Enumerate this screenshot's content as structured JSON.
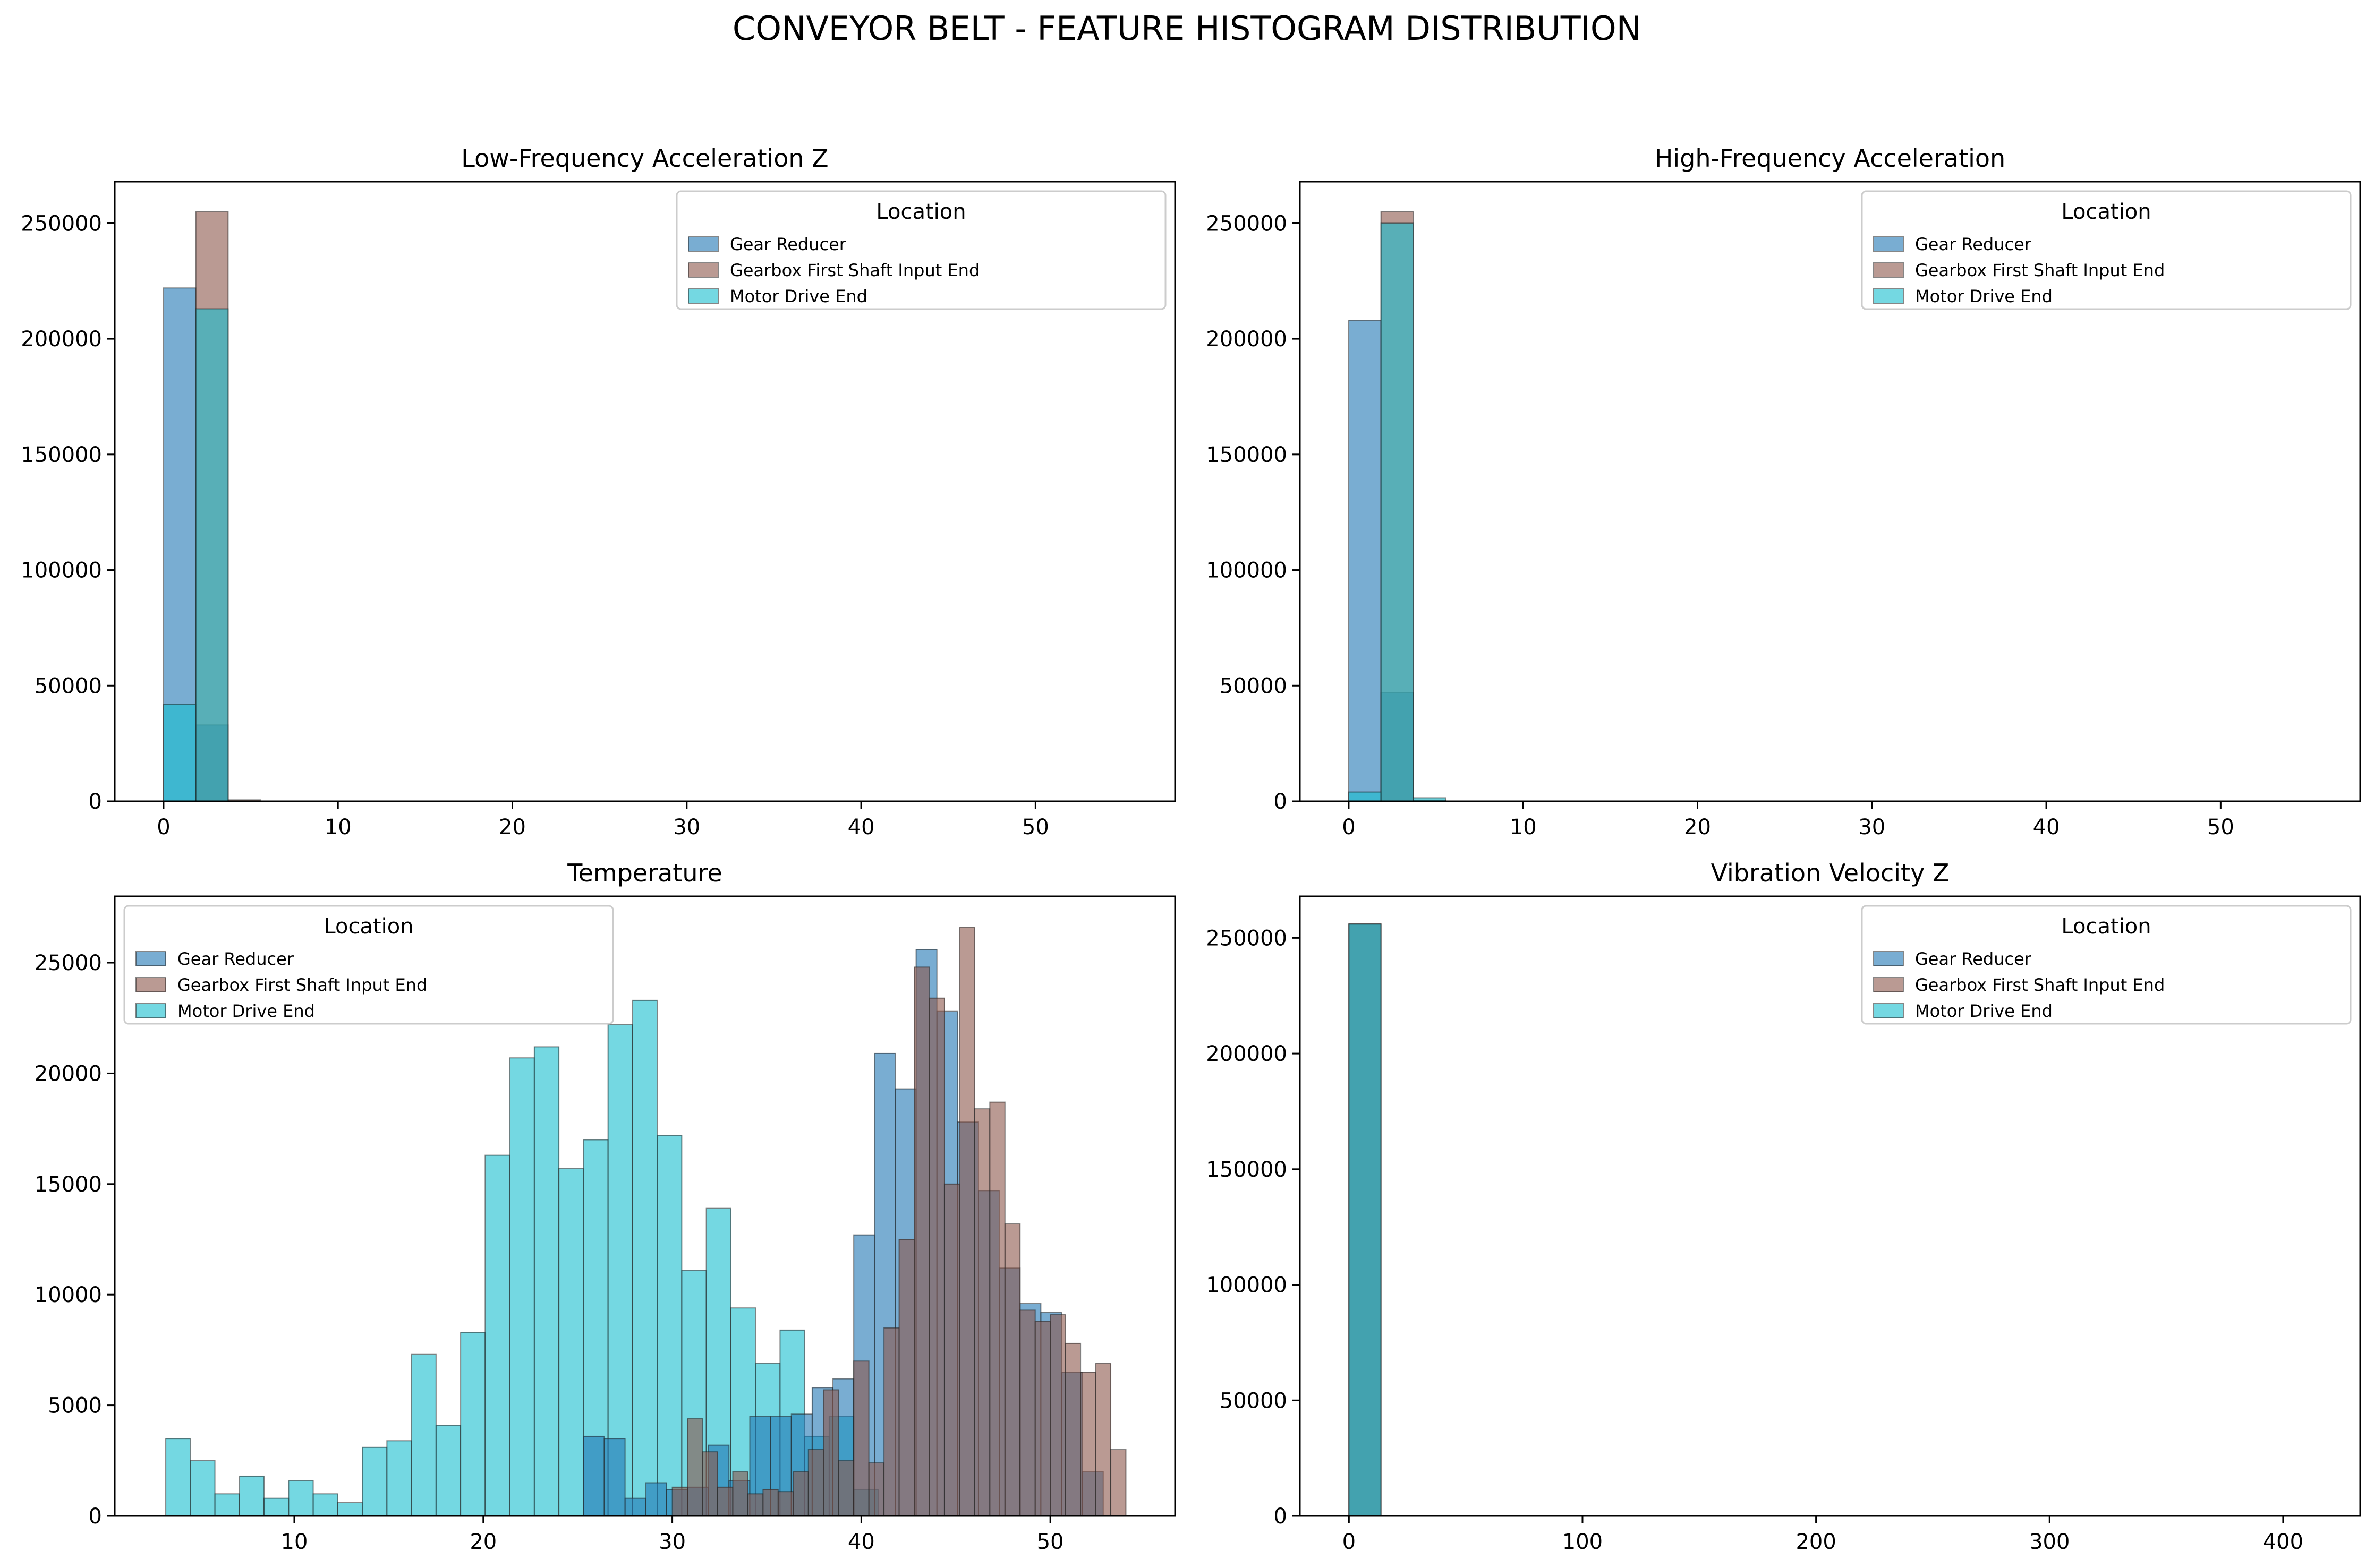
{
  "figure": {
    "title": "CONVEYOR BELT - FEATURE HISTOGRAM DISTRIBUTION"
  },
  "colors": {
    "Gear Reducer": "#1f77b4",
    "Gearbox First Shaft Input End": "#8c564b",
    "Motor Drive End": "#17becf"
  },
  "chart_data": [
    {
      "type": "bar",
      "title": "Low-Frequency Acceleration Z",
      "xlabel": "",
      "ylabel": "",
      "xlim": [
        -2.8,
        58
      ],
      "ylim": [
        0,
        268000
      ],
      "xticks": [
        0,
        10,
        20,
        30,
        40,
        50
      ],
      "yticks": [
        0,
        50000,
        100000,
        150000,
        200000,
        250000
      ],
      "legend": {
        "title": "Location",
        "position": "top-right",
        "entries": [
          "Gear Reducer",
          "Gearbox First Shaft Input End",
          "Motor Drive End"
        ]
      },
      "series": [
        {
          "name": "Gear Reducer",
          "bins": [
            [
              0,
              1.85,
              222000
            ],
            [
              1.85,
              3.7,
              33000
            ]
          ]
        },
        {
          "name": "Gearbox First Shaft Input End",
          "bins": [
            [
              1.85,
              3.7,
              255000
            ],
            [
              3.7,
              5.55,
              600
            ]
          ]
        },
        {
          "name": "Motor Drive End",
          "bins": [
            [
              0,
              1.85,
              42000
            ],
            [
              1.85,
              3.7,
              213000
            ]
          ]
        }
      ]
    },
    {
      "type": "bar",
      "title": "High-Frequency Acceleration",
      "xlabel": "",
      "ylabel": "",
      "xlim": [
        -2.8,
        58
      ],
      "ylim": [
        0,
        268000
      ],
      "xticks": [
        0,
        10,
        20,
        30,
        40,
        50
      ],
      "yticks": [
        0,
        50000,
        100000,
        150000,
        200000,
        250000
      ],
      "legend": {
        "title": "Location",
        "position": "top-right",
        "entries": [
          "Gear Reducer",
          "Gearbox First Shaft Input End",
          "Motor Drive End"
        ]
      },
      "series": [
        {
          "name": "Gear Reducer",
          "bins": [
            [
              0,
              1.85,
              208000
            ],
            [
              1.85,
              3.7,
              47000
            ]
          ]
        },
        {
          "name": "Gearbox First Shaft Input End",
          "bins": [
            [
              1.85,
              3.7,
              255000
            ],
            [
              3.7,
              5.55,
              500
            ]
          ]
        },
        {
          "name": "Motor Drive End",
          "bins": [
            [
              0,
              1.85,
              4000
            ],
            [
              1.85,
              3.7,
              250000
            ],
            [
              3.7,
              5.55,
              1500
            ]
          ]
        }
      ]
    },
    {
      "type": "bar",
      "title": "Temperature",
      "xlabel": "",
      "ylabel": "",
      "xlim": [
        0.5,
        56.6
      ],
      "ylim": [
        0,
        28000
      ],
      "xticks": [
        10,
        20,
        30,
        40,
        50
      ],
      "yticks": [
        0,
        5000,
        10000,
        15000,
        20000,
        25000
      ],
      "legend": {
        "title": "Location",
        "position": "top-left",
        "entries": [
          "Gear Reducer",
          "Gearbox First Shaft Input End",
          "Motor Drive End"
        ]
      },
      "series": [
        {
          "name": "Motor Drive End",
          "bins": [
            [
              3.2,
              4.5,
              3500
            ],
            [
              4.5,
              5.8,
              2500
            ],
            [
              5.8,
              7.1,
              1000
            ],
            [
              7.1,
              8.4,
              1800
            ],
            [
              8.4,
              9.7,
              800
            ],
            [
              9.7,
              11.0,
              1600
            ],
            [
              11.0,
              12.3,
              1000
            ],
            [
              12.3,
              13.6,
              600
            ],
            [
              13.6,
              14.9,
              3100
            ],
            [
              14.9,
              16.2,
              3400
            ],
            [
              16.2,
              17.5,
              7300
            ],
            [
              17.5,
              18.8,
              4100
            ],
            [
              18.8,
              20.1,
              8300
            ],
            [
              20.1,
              21.4,
              16300
            ],
            [
              21.4,
              22.7,
              20700
            ],
            [
              22.7,
              24.0,
              21200
            ],
            [
              24.0,
              25.3,
              15700
            ],
            [
              25.3,
              26.6,
              17000
            ],
            [
              26.6,
              27.9,
              22200
            ],
            [
              27.9,
              29.2,
              23300
            ],
            [
              29.2,
              30.5,
              17200
            ],
            [
              30.5,
              31.8,
              11100
            ],
            [
              31.8,
              33.1,
              13900
            ],
            [
              33.1,
              34.4,
              9400
            ],
            [
              34.4,
              35.7,
              6900
            ],
            [
              35.7,
              37.0,
              8400
            ],
            [
              37.0,
              38.3,
              3600
            ],
            [
              38.3,
              39.6,
              4500
            ],
            [
              39.6,
              40.9,
              1200
            ]
          ]
        },
        {
          "name": "Gear Reducer",
          "bins": [
            [
              25.3,
              26.4,
              3600
            ],
            [
              26.4,
              27.5,
              3500
            ],
            [
              27.5,
              28.6,
              800
            ],
            [
              28.6,
              29.7,
              1500
            ],
            [
              29.7,
              30.8,
              1200
            ],
            [
              30.8,
              31.9,
              1300
            ],
            [
              31.9,
              33.0,
              3200
            ],
            [
              33.0,
              34.1,
              1600
            ],
            [
              34.1,
              35.2,
              4500
            ],
            [
              35.2,
              36.3,
              4500
            ],
            [
              36.3,
              37.4,
              4600
            ],
            [
              37.4,
              38.5,
              5800
            ],
            [
              38.5,
              39.6,
              6200
            ],
            [
              39.6,
              40.7,
              12700
            ],
            [
              40.7,
              41.8,
              20900
            ],
            [
              41.8,
              42.9,
              19300
            ],
            [
              42.9,
              44.0,
              25600
            ],
            [
              44.0,
              45.1,
              22800
            ],
            [
              45.1,
              46.2,
              17800
            ],
            [
              46.2,
              47.3,
              14700
            ],
            [
              47.3,
              48.4,
              11200
            ],
            [
              48.4,
              49.5,
              9600
            ],
            [
              49.5,
              50.6,
              9200
            ],
            [
              50.6,
              51.7,
              6500
            ],
            [
              51.7,
              52.8,
              2000
            ]
          ]
        },
        {
          "name": "Gearbox First Shaft Input End",
          "bins": [
            [
              30.0,
              30.8,
              1300
            ],
            [
              30.8,
              31.6,
              4400
            ],
            [
              31.6,
              32.4,
              2900
            ],
            [
              32.4,
              33.2,
              1300
            ],
            [
              33.2,
              34.0,
              2000
            ],
            [
              34.0,
              34.8,
              1000
            ],
            [
              34.8,
              35.6,
              1200
            ],
            [
              35.6,
              36.4,
              1100
            ],
            [
              36.4,
              37.2,
              2000
            ],
            [
              37.2,
              38.0,
              3000
            ],
            [
              38.0,
              38.8,
              5700
            ],
            [
              38.8,
              39.6,
              2500
            ],
            [
              39.6,
              40.4,
              7000
            ],
            [
              40.4,
              41.2,
              2400
            ],
            [
              41.2,
              42.0,
              8500
            ],
            [
              42.0,
              42.8,
              12500
            ],
            [
              42.8,
              43.6,
              24800
            ],
            [
              43.6,
              44.4,
              23400
            ],
            [
              44.4,
              45.2,
              15000
            ],
            [
              45.2,
              46.0,
              26600
            ],
            [
              46.0,
              46.8,
              18400
            ],
            [
              46.8,
              47.6,
              18700
            ],
            [
              47.6,
              48.4,
              13200
            ],
            [
              48.4,
              49.2,
              9300
            ],
            [
              49.2,
              50.0,
              8800
            ],
            [
              50.0,
              50.8,
              9100
            ],
            [
              50.8,
              51.6,
              7800
            ],
            [
              51.6,
              52.4,
              6500
            ],
            [
              52.4,
              53.2,
              6900
            ],
            [
              53.2,
              54.0,
              3000
            ]
          ]
        }
      ]
    },
    {
      "type": "bar",
      "title": "Vibration Velocity Z",
      "xlabel": "",
      "ylabel": "",
      "xlim": [
        -21,
        433
      ],
      "ylim": [
        0,
        268000
      ],
      "xticks": [
        0,
        100,
        200,
        300,
        400
      ],
      "yticks": [
        0,
        50000,
        100000,
        150000,
        200000,
        250000
      ],
      "legend": {
        "title": "Location",
        "position": "top-right",
        "entries": [
          "Gear Reducer",
          "Gearbox First Shaft Input End",
          "Motor Drive End"
        ]
      },
      "series": [
        {
          "name": "Gear Reducer",
          "bins": [
            [
              0,
              13.7,
              256000
            ]
          ]
        },
        {
          "name": "Gearbox First Shaft Input End",
          "bins": [
            [
              0,
              13.7,
              256000
            ]
          ]
        },
        {
          "name": "Motor Drive End",
          "bins": [
            [
              0,
              13.7,
              256000
            ]
          ]
        }
      ]
    }
  ]
}
